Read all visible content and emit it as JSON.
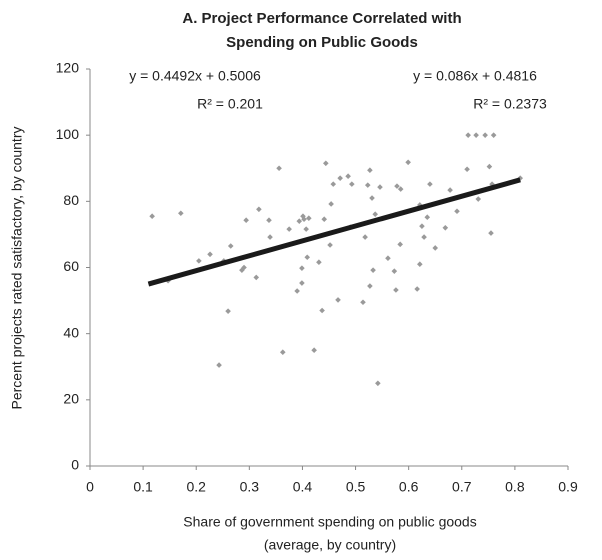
{
  "chart_data": {
    "type": "scatter",
    "title": [
      "A. Project Performance Correlated with",
      "Spending on Public Goods"
    ],
    "xlabel": [
      "Share of government spending on public goods",
      "(average, by country)"
    ],
    "ylabel": "Percent projects rated satisfactory, by country",
    "annotations": [
      "y = 0.4492x + 0.5006",
      "R² = 0.201",
      "y = 0.086x + 0.4816",
      "R² = 0.2373"
    ],
    "xlim": [
      0,
      0.9
    ],
    "xticks": [
      0,
      0.1,
      0.2,
      0.3,
      0.4,
      0.5,
      0.6,
      0.7,
      0.8,
      0.9
    ],
    "ylim": [
      0,
      120
    ],
    "yticks": [
      0,
      20,
      40,
      60,
      80,
      100,
      120
    ],
    "grid": false,
    "color": "#9a9a9a",
    "x": [
      0.117,
      0.147,
      0.171,
      0.205,
      0.226,
      0.243,
      0.252,
      0.26,
      0.265,
      0.286,
      0.29,
      0.294,
      0.313,
      0.318,
      0.337,
      0.339,
      0.356,
      0.363,
      0.375,
      0.39,
      0.394,
      0.399,
      0.399,
      0.401,
      0.403,
      0.407,
      0.409,
      0.412,
      0.422,
      0.431,
      0.437,
      0.441,
      0.444,
      0.452,
      0.454,
      0.458,
      0.467,
      0.471,
      0.486,
      0.49,
      0.493,
      0.514,
      0.518,
      0.523,
      0.527,
      0.527,
      0.531,
      0.533,
      0.537,
      0.542,
      0.546,
      0.561,
      0.573,
      0.576,
      0.578,
      0.584,
      0.585,
      0.599,
      0.616,
      0.621,
      0.621,
      0.625,
      0.629,
      0.635,
      0.64,
      0.65,
      0.669,
      0.678,
      0.691,
      0.71,
      0.712,
      0.727,
      0.731,
      0.744,
      0.752,
      0.755,
      0.757,
      0.76,
      0.81
    ],
    "y": [
      75.5,
      56,
      76.4,
      62,
      64,
      30.5,
      62,
      46.8,
      66.5,
      59.2,
      60,
      74.3,
      57,
      77.6,
      74.3,
      69.2,
      90,
      34.4,
      71.6,
      52.9,
      74,
      55.3,
      59.8,
      75.5,
      74.6,
      71.6,
      63.1,
      74.9,
      35,
      61.6,
      47,
      74.6,
      91.5,
      66.8,
      79.2,
      85.2,
      50.2,
      87,
      87.6,
      72.2,
      85.2,
      49.5,
      69.2,
      84.9,
      89.4,
      54.4,
      81,
      59.2,
      76.1,
      25,
      84.3,
      62.8,
      58.9,
      53.2,
      84.6,
      67,
      83.7,
      91.8,
      53.5,
      61,
      78.9,
      72.5,
      69.2,
      75.2,
      85.2,
      65.9,
      72,
      83.4,
      77,
      89.7,
      100,
      100,
      80.7,
      100,
      90.5,
      70.4,
      85.2,
      100,
      87
    ],
    "trendline": {
      "x": [
        0.11,
        0.81
      ],
      "y": [
        55,
        86.5
      ],
      "color": "#1a1a1a"
    }
  }
}
